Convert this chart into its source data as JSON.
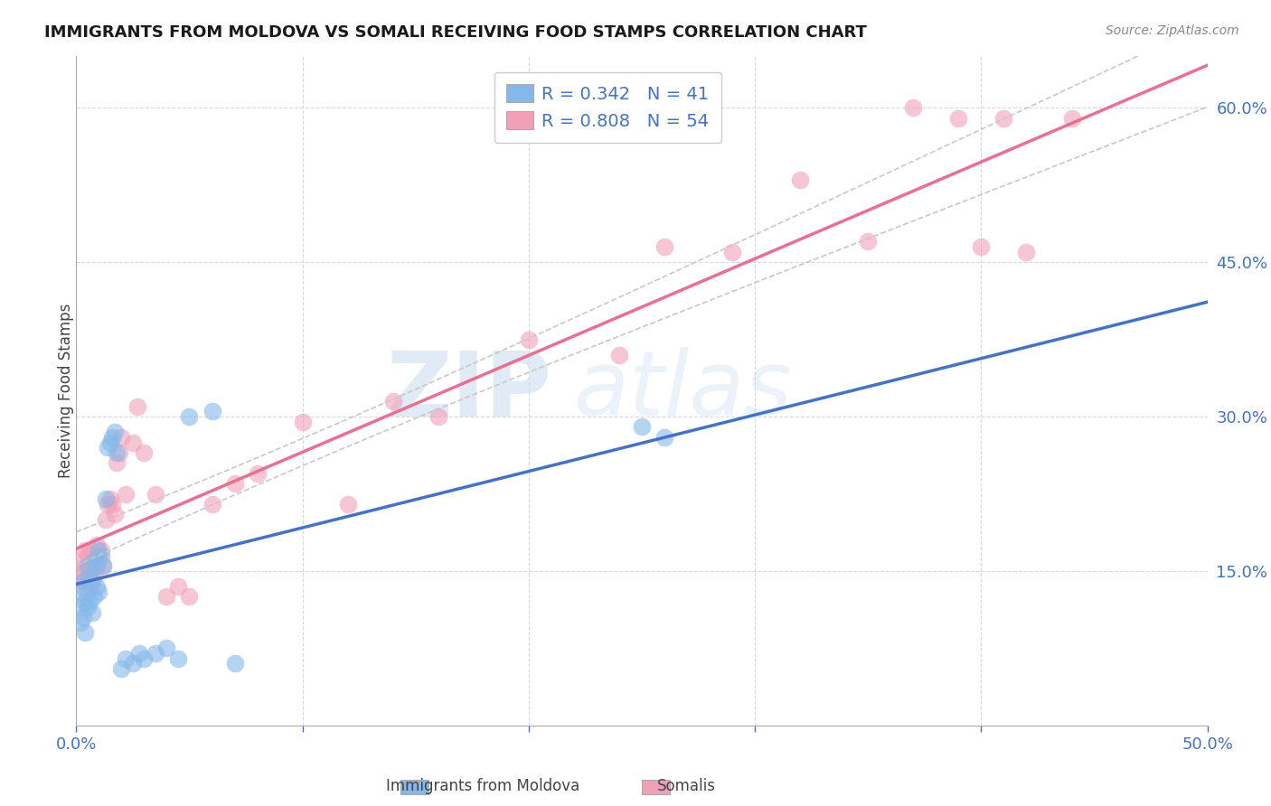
{
  "title": "IMMIGRANTS FROM MOLDOVA VS SOMALI RECEIVING FOOD STAMPS CORRELATION CHART",
  "source": "Source: ZipAtlas.com",
  "ylabel": "Receiving Food Stamps",
  "xlim": [
    0.0,
    0.5
  ],
  "ylim": [
    0.0,
    0.65
  ],
  "moldova_color": "#85B8EA",
  "somalia_color": "#F2A0B8",
  "moldova_line_color": "#4472C4",
  "somalia_line_color": "#E87090",
  "ci_color": "#C8C8C8",
  "legend_moldova_R": "0.342",
  "legend_moldova_N": "41",
  "legend_somalia_R": "0.808",
  "legend_somalia_N": "54",
  "moldova_x": [
    0.001,
    0.002,
    0.002,
    0.003,
    0.003,
    0.004,
    0.004,
    0.005,
    0.005,
    0.005,
    0.006,
    0.006,
    0.007,
    0.007,
    0.008,
    0.008,
    0.009,
    0.009,
    0.01,
    0.01,
    0.011,
    0.012,
    0.013,
    0.014,
    0.015,
    0.016,
    0.017,
    0.018,
    0.02,
    0.022,
    0.025,
    0.028,
    0.03,
    0.035,
    0.04,
    0.045,
    0.05,
    0.06,
    0.07,
    0.25,
    0.26
  ],
  "moldova_y": [
    0.115,
    0.13,
    0.1,
    0.105,
    0.14,
    0.09,
    0.12,
    0.155,
    0.13,
    0.115,
    0.145,
    0.12,
    0.11,
    0.14,
    0.16,
    0.125,
    0.155,
    0.135,
    0.17,
    0.13,
    0.165,
    0.155,
    0.22,
    0.27,
    0.275,
    0.28,
    0.285,
    0.265,
    0.055,
    0.065,
    0.06,
    0.07,
    0.065,
    0.07,
    0.075,
    0.065,
    0.3,
    0.305,
    0.06,
    0.29,
    0.28
  ],
  "somalia_x": [
    0.001,
    0.002,
    0.003,
    0.003,
    0.004,
    0.004,
    0.005,
    0.005,
    0.006,
    0.006,
    0.007,
    0.007,
    0.008,
    0.008,
    0.009,
    0.009,
    0.01,
    0.011,
    0.012,
    0.013,
    0.014,
    0.015,
    0.016,
    0.017,
    0.018,
    0.019,
    0.02,
    0.022,
    0.025,
    0.027,
    0.03,
    0.035,
    0.04,
    0.045,
    0.05,
    0.06,
    0.07,
    0.08,
    0.1,
    0.12,
    0.14,
    0.16,
    0.2,
    0.24,
    0.26,
    0.29,
    0.32,
    0.35,
    0.37,
    0.39,
    0.4,
    0.41,
    0.42,
    0.44
  ],
  "somalia_y": [
    0.16,
    0.15,
    0.145,
    0.135,
    0.17,
    0.155,
    0.165,
    0.145,
    0.14,
    0.17,
    0.16,
    0.15,
    0.165,
    0.145,
    0.175,
    0.155,
    0.165,
    0.17,
    0.155,
    0.2,
    0.215,
    0.22,
    0.215,
    0.205,
    0.255,
    0.265,
    0.28,
    0.225,
    0.275,
    0.31,
    0.265,
    0.225,
    0.125,
    0.135,
    0.125,
    0.215,
    0.235,
    0.245,
    0.295,
    0.215,
    0.315,
    0.3,
    0.375,
    0.36,
    0.465,
    0.46,
    0.53,
    0.47,
    0.6,
    0.59,
    0.465,
    0.59,
    0.46,
    0.59
  ]
}
